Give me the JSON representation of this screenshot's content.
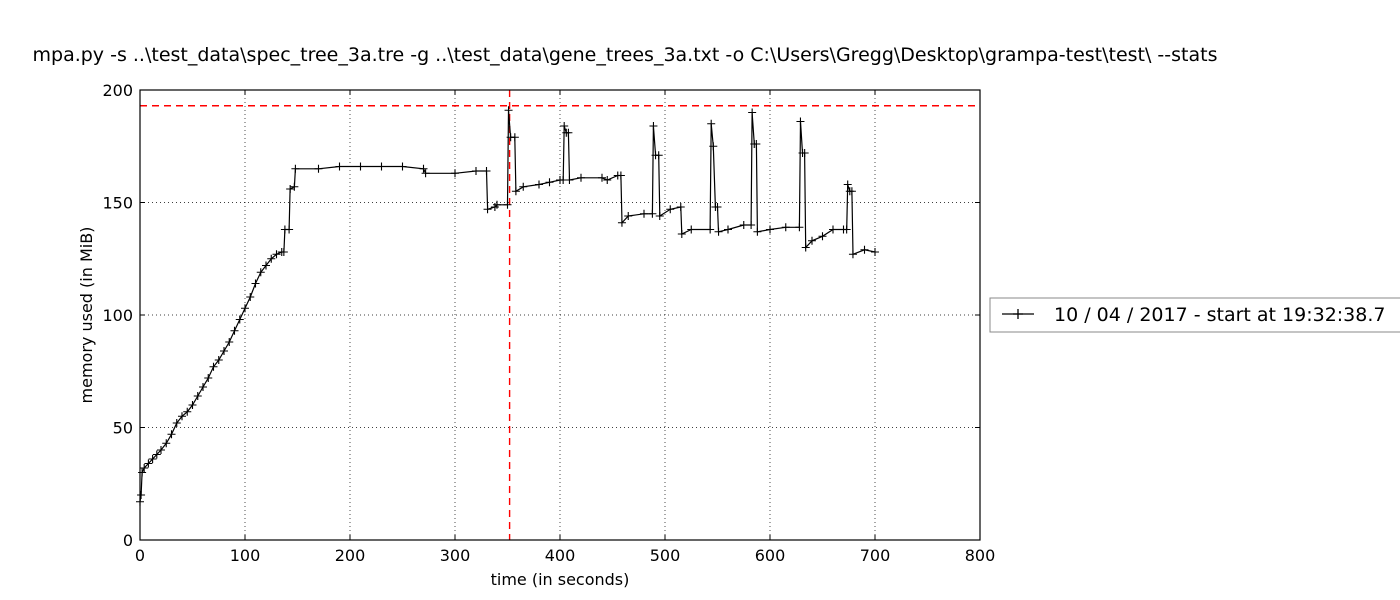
{
  "chart_data": {
    "type": "line",
    "title": "mpa.py -s ..\\test_data\\spec_tree_3a.tre -g ..\\test_data\\gene_trees_3a.txt -o C:\\Users\\Gregg\\Desktop\\grampa-test\\test\\ --stats",
    "xlabel": "time (in seconds)",
    "ylabel": "memory used (in MiB)",
    "xlim": [
      0,
      800
    ],
    "ylim": [
      0,
      200
    ],
    "xticks": [
      0,
      100,
      200,
      300,
      400,
      500,
      600,
      700,
      800
    ],
    "yticks": [
      0,
      50,
      100,
      150,
      200
    ],
    "grid": true,
    "legend_position": "outside-right",
    "series": [
      {
        "name": "10 / 04 / 2017 - start at 19:32:38.7",
        "color": "#000000",
        "marker": "+",
        "points": [
          [
            0,
            17
          ],
          [
            1,
            20
          ],
          [
            2,
            30
          ],
          [
            4,
            32
          ],
          [
            8,
            34
          ],
          [
            12,
            36
          ],
          [
            16,
            38
          ],
          [
            20,
            40
          ],
          [
            25,
            43
          ],
          [
            30,
            47
          ],
          [
            35,
            52
          ],
          [
            40,
            55
          ],
          [
            45,
            57
          ],
          [
            50,
            60
          ],
          [
            55,
            64
          ],
          [
            60,
            68
          ],
          [
            65,
            72
          ],
          [
            70,
            77
          ],
          [
            75,
            80
          ],
          [
            80,
            84
          ],
          [
            85,
            88
          ],
          [
            90,
            93
          ],
          [
            95,
            98
          ],
          [
            100,
            103
          ],
          [
            105,
            108
          ],
          [
            110,
            114
          ],
          [
            115,
            119
          ],
          [
            120,
            122
          ],
          [
            125,
            125
          ],
          [
            130,
            127
          ],
          [
            135,
            128
          ],
          [
            137,
            128
          ],
          [
            138,
            138
          ],
          [
            142,
            138
          ],
          [
            143,
            156
          ],
          [
            147,
            157
          ],
          [
            148,
            165
          ],
          [
            170,
            165
          ],
          [
            190,
            166
          ],
          [
            210,
            166
          ],
          [
            230,
            166
          ],
          [
            250,
            166
          ],
          [
            270,
            165
          ],
          [
            272,
            163
          ],
          [
            300,
            163
          ],
          [
            320,
            164
          ],
          [
            330,
            164
          ],
          [
            331,
            147
          ],
          [
            338,
            148
          ],
          [
            340,
            149
          ],
          [
            350,
            149
          ],
          [
            351,
            191
          ],
          [
            353,
            179
          ],
          [
            357,
            179
          ],
          [
            358,
            155
          ],
          [
            365,
            157
          ],
          [
            380,
            158
          ],
          [
            390,
            159
          ],
          [
            400,
            160
          ],
          [
            403,
            160
          ],
          [
            404,
            184
          ],
          [
            406,
            181
          ],
          [
            408,
            181
          ],
          [
            409,
            160
          ],
          [
            420,
            161
          ],
          [
            440,
            161
          ],
          [
            445,
            160
          ],
          [
            455,
            162
          ],
          [
            458,
            162
          ],
          [
            459,
            141
          ],
          [
            465,
            144
          ],
          [
            480,
            145
          ],
          [
            488,
            145
          ],
          [
            489,
            184
          ],
          [
            491,
            171
          ],
          [
            494,
            171
          ],
          [
            495,
            144
          ],
          [
            505,
            147
          ],
          [
            515,
            148
          ],
          [
            516,
            136
          ],
          [
            525,
            138
          ],
          [
            543,
            138
          ],
          [
            544,
            185
          ],
          [
            546,
            175
          ],
          [
            548,
            148
          ],
          [
            550,
            148
          ],
          [
            551,
            137
          ],
          [
            560,
            138
          ],
          [
            575,
            140
          ],
          [
            582,
            140
          ],
          [
            583,
            190
          ],
          [
            585,
            176
          ],
          [
            587,
            176
          ],
          [
            588,
            137
          ],
          [
            600,
            138
          ],
          [
            615,
            139
          ],
          [
            628,
            139
          ],
          [
            629,
            186
          ],
          [
            631,
            172
          ],
          [
            633,
            172
          ],
          [
            634,
            130
          ],
          [
            640,
            133
          ],
          [
            650,
            135
          ],
          [
            660,
            138
          ],
          [
            670,
            138
          ],
          [
            673,
            138
          ],
          [
            674,
            158
          ],
          [
            676,
            155
          ],
          [
            678,
            155
          ],
          [
            679,
            127
          ],
          [
            690,
            129
          ],
          [
            700,
            128
          ]
        ]
      }
    ],
    "annotations": {
      "hline": {
        "y": 193,
        "color": "#ff0000",
        "style": "dashed"
      },
      "vline": {
        "x": 352,
        "color": "#ff0000",
        "style": "dashed"
      }
    }
  }
}
